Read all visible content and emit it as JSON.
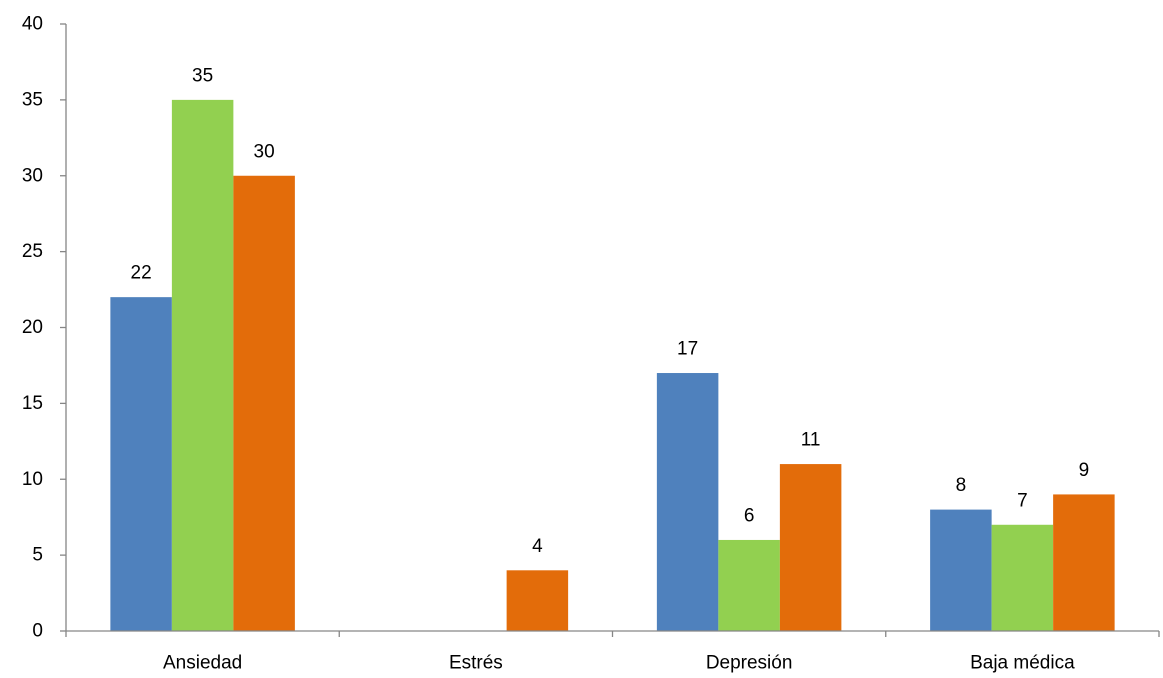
{
  "chart_data": {
    "type": "bar",
    "title": "",
    "xlabel": "",
    "ylabel": "",
    "ylim": [
      0,
      40
    ],
    "yticks": [
      0,
      5,
      10,
      15,
      20,
      25,
      30,
      35,
      40
    ],
    "grid": false,
    "legend": "none",
    "categories": [
      "Ansiedad",
      "Estrés",
      "Depresión",
      "Baja médica"
    ],
    "series": [
      {
        "color": "#4f81bd",
        "values": [
          22,
          null,
          17,
          8
        ]
      },
      {
        "color": "#92d050",
        "values": [
          35,
          null,
          6,
          7
        ]
      },
      {
        "color": "#e36c0a",
        "values": [
          30,
          4,
          11,
          9
        ]
      }
    ]
  }
}
